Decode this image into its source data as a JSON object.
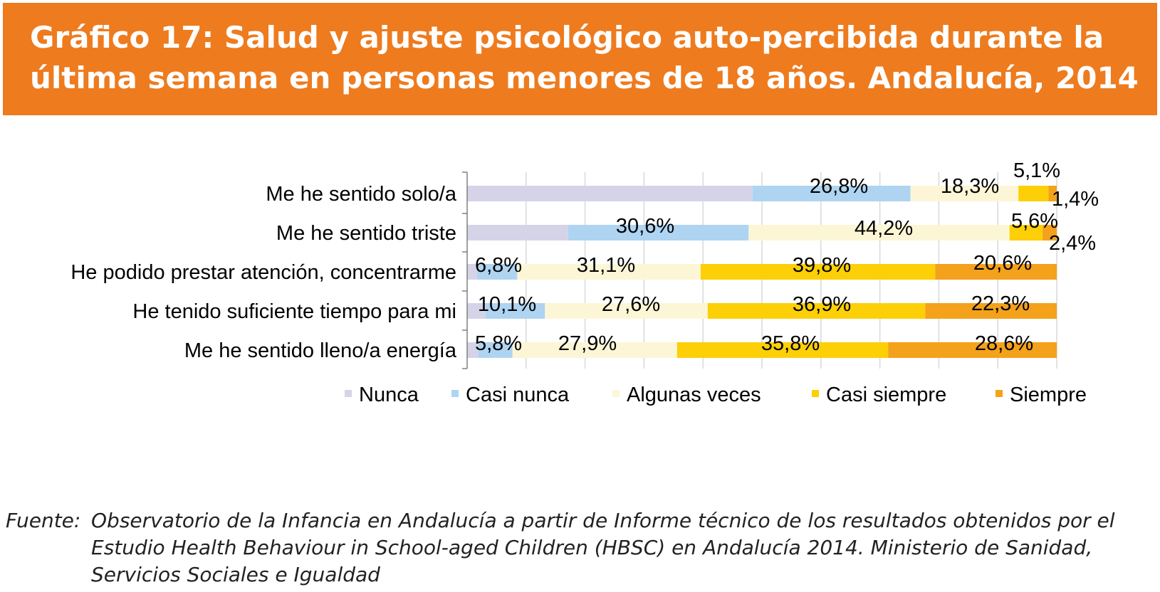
{
  "header": {
    "title": "Gráfico 17: Salud y ajuste psicológico auto-percibida durante la última semana en personas menores de 18 años. Andalucía, 2014"
  },
  "chart_data": {
    "type": "bar",
    "orientation": "horizontal",
    "stacked": "percent",
    "categories": [
      "Me he sentido solo/a",
      "Me he sentido triste",
      "He podido prestar atención, concentrarme",
      "He tenido suficiente tiempo para mi",
      "Me he sentido lleno/a energía"
    ],
    "series": [
      {
        "name": "Nunca",
        "color": "#d5d3e8",
        "values": [
          48.4,
          17.1,
          1.7,
          3.1,
          1.9
        ],
        "labels": [
          "",
          "",
          "",
          "",
          ""
        ]
      },
      {
        "name": "Casi nunca",
        "color": "#aed4f1",
        "values": [
          26.8,
          30.6,
          6.8,
          10.1,
          5.8
        ],
        "labels": [
          "26,8%",
          "30,6%",
          "6,8%",
          "10,1%",
          "5,8%"
        ]
      },
      {
        "name": "Algunas veces",
        "color": "#fdf6d6",
        "values": [
          18.3,
          44.2,
          31.1,
          27.6,
          27.9
        ],
        "labels": [
          "18,3%",
          "44,2%",
          "31,1%",
          "27,6%",
          "27,9%"
        ]
      },
      {
        "name": "Casi siempre",
        "color": "#fccf07",
        "values": [
          5.1,
          5.6,
          39.8,
          36.9,
          35.8
        ],
        "labels": [
          "5,1%",
          "5,6%",
          "39,8%",
          "36,9%",
          "35,8%"
        ]
      },
      {
        "name": "Siempre",
        "color": "#f4a11b",
        "values": [
          1.4,
          2.4,
          20.6,
          22.3,
          28.6
        ],
        "labels": [
          "1,4%",
          "2,4%",
          "20,6%",
          "22,3%",
          "28,6%"
        ]
      }
    ],
    "xlim": [
      0,
      100
    ],
    "grid": true,
    "legend_position": "bottom"
  },
  "source": {
    "label": "Fuente:",
    "text": "Observatorio de la Infancia en Andalucía a partir de Informe técnico de los resultados obtenidos por el Estudio Health Behaviour in School-aged Children (HBSC) en Andalucía 2014. Ministerio de Sanidad, Servicios Sociales e Igualdad"
  }
}
